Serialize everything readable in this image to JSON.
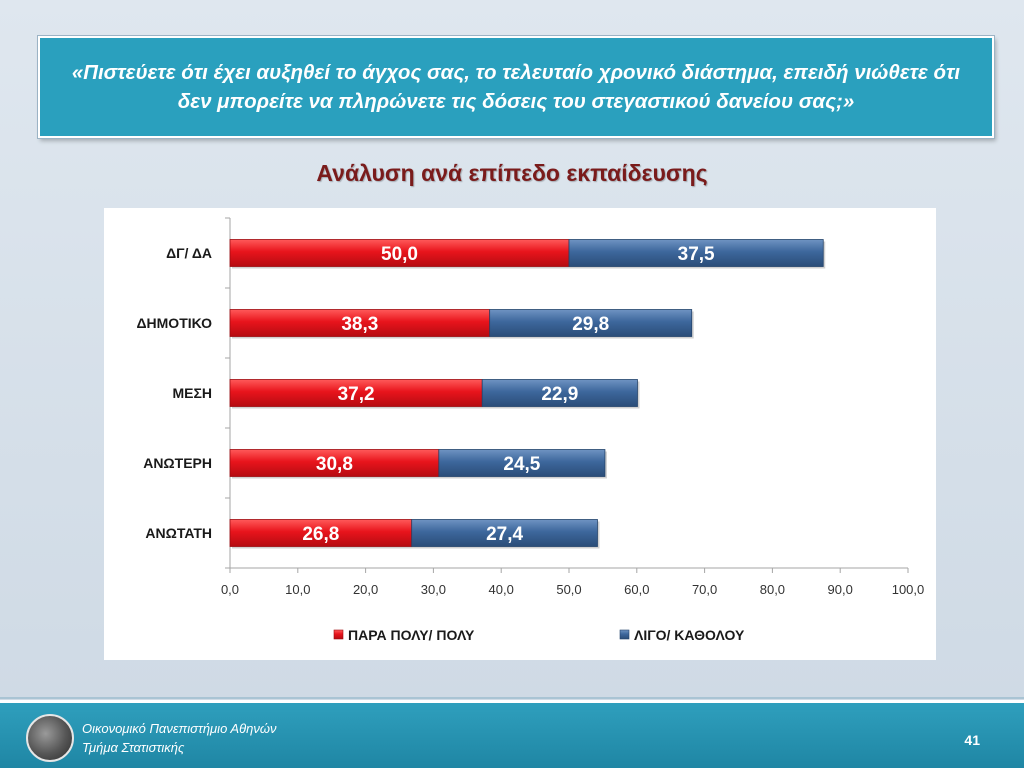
{
  "question": "«Πιστεύετε ότι έχει αυξηθεί το άγχος σας, το τελευταίο χρονικό διάστημα, επειδή νιώθετε ότι δεν μπορείτε να πληρώνετε τις δόσεις του στεγαστικού δανείου σας;»",
  "subtitle": "Ανάλυση ανά επίπεδο εκπαίδευσης",
  "footer": {
    "line1": "Οικονομικό Πανεπιστήμιο Αθηνών",
    "line2": "Τμήμα Στατιστικής",
    "page": "41",
    "logo_icon": "university-seal-icon"
  },
  "colors": {
    "series1": "#e8141c",
    "series2": "#3d679c",
    "question_bg": "#2aa0be",
    "subtitle": "#7a1b1b"
  },
  "chart_data": {
    "type": "bar",
    "orientation": "horizontal",
    "stacked": true,
    "categories": [
      "ΔΓ/ ΔΑ",
      "ΔΗΜΟΤΙΚΟ",
      "ΜΕΣΗ",
      "ΑΝΩΤΕΡΗ",
      "ΑΝΩΤΑΤΗ"
    ],
    "series": [
      {
        "name": "ΠΑΡΑ ΠΟΛΥ/ ΠΟΛΥ",
        "values": [
          50.0,
          38.3,
          37.2,
          30.8,
          26.8
        ],
        "labels": [
          "50,0",
          "38,3",
          "37,2",
          "30,8",
          "26,8"
        ]
      },
      {
        "name": "ΛΙΓΟ/ ΚΑΘΟΛΟΥ",
        "values": [
          37.5,
          29.8,
          22.9,
          24.5,
          27.4
        ],
        "labels": [
          "37,5",
          "29,8",
          "22,9",
          "24,5",
          "27,4"
        ]
      }
    ],
    "xlim": [
      0,
      100
    ],
    "xticks": [
      "0,0",
      "10,0",
      "20,0",
      "30,0",
      "40,0",
      "50,0",
      "60,0",
      "70,0",
      "80,0",
      "90,0",
      "100,0"
    ],
    "legend": "bottom",
    "grid": false
  }
}
